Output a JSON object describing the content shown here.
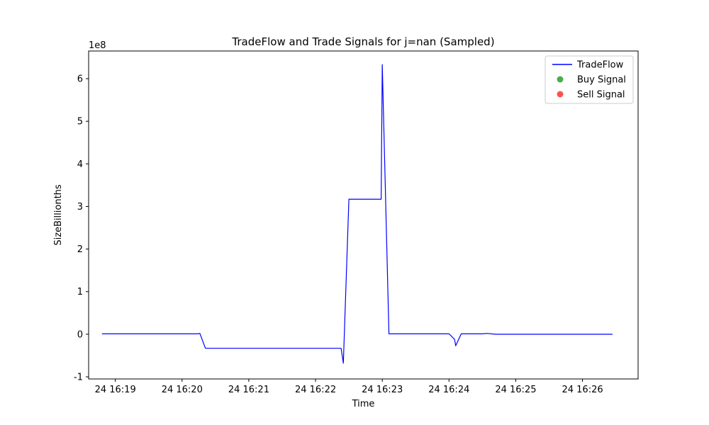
{
  "chart_data": {
    "type": "line",
    "title": "TradeFlow and Trade Signals for j=nan (Sampled)",
    "xlabel": "Time",
    "ylabel": "SizeBillionths",
    "y_scale_label": "1e8",
    "y_multiplier": 100000000,
    "ylim": [
      -1.05,
      6.65
    ],
    "yticks": [
      -1,
      0,
      1,
      2,
      3,
      4,
      5,
      6
    ],
    "xlim": [
      "16:18:36",
      "16:26:50"
    ],
    "xticks": [
      {
        "time": "16:19:00",
        "label": "24 16:19"
      },
      {
        "time": "16:20:00",
        "label": "24 16:20"
      },
      {
        "time": "16:21:00",
        "label": "24 16:21"
      },
      {
        "time": "16:22:00",
        "label": "24 16:22"
      },
      {
        "time": "16:23:00",
        "label": "24 16:23"
      },
      {
        "time": "16:24:00",
        "label": "24 16:24"
      },
      {
        "time": "16:25:00",
        "label": "24 16:25"
      },
      {
        "time": "16:26:00",
        "label": "24 16:26"
      }
    ],
    "grid": false,
    "legend_position": "top-right",
    "series": [
      {
        "name": "TradeFlow",
        "color": "#0000ff",
        "kind": "line",
        "points": [
          [
            "16:18:48",
            0.01
          ],
          [
            "16:20:14",
            0.01
          ],
          [
            "16:20:16",
            0.02
          ],
          [
            "16:20:21",
            -0.33
          ],
          [
            "16:22:23",
            -0.33
          ],
          [
            "16:22:25",
            -0.68
          ],
          [
            "16:22:30",
            3.17
          ],
          [
            "16:22:59",
            3.17
          ],
          [
            "16:23:00",
            6.33
          ],
          [
            "16:23:06",
            0.01
          ],
          [
            "16:24:00",
            0.01
          ],
          [
            "16:24:05",
            -0.12
          ],
          [
            "16:24:06",
            -0.27
          ],
          [
            "16:24:11",
            0.01
          ],
          [
            "16:24:30",
            0.01
          ],
          [
            "16:24:34",
            0.02
          ],
          [
            "16:24:42",
            0.0
          ],
          [
            "16:26:27",
            0.0
          ]
        ]
      },
      {
        "name": "Buy Signal",
        "color": "#2ca02c",
        "kind": "scatter",
        "points": []
      },
      {
        "name": "Sell Signal",
        "color": "#ff3333",
        "kind": "scatter",
        "points": []
      }
    ]
  }
}
